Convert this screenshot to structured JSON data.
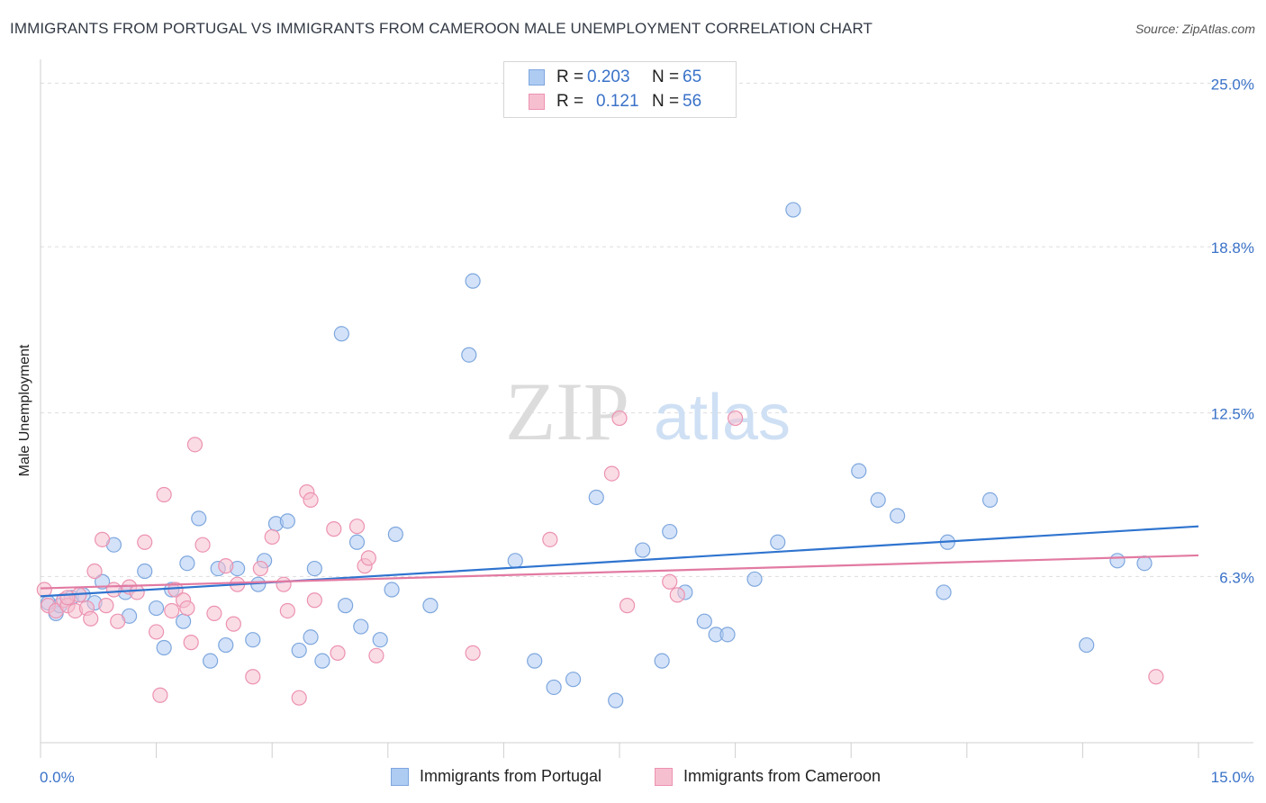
{
  "header": {
    "title": "IMMIGRANTS FROM PORTUGAL VS IMMIGRANTS FROM CAMEROON MALE UNEMPLOYMENT CORRELATION CHART",
    "source": "Source: ZipAtlas.com"
  },
  "watermark": {
    "zip": "ZIP",
    "atlas": "atlas"
  },
  "legend": {
    "r_label": "R =",
    "n_label": "N =",
    "portugal": {
      "r": "0.203",
      "n": "65"
    },
    "cameroon": {
      "r": "0.121",
      "n": "56"
    }
  },
  "bottom_legend": {
    "portugal": "Immigrants from Portugal",
    "cameroon": "Immigrants from Cameroon"
  },
  "colors": {
    "portugal_fill": "#aecbf2",
    "portugal_stroke": "#7ea7de",
    "portugal_line": "#2f74cf",
    "cameroon_fill": "#f6bfd0",
    "cameroon_stroke": "#ec92b0",
    "cameroon_line": "#e27aa2",
    "axis_label": "#3a72c8"
  },
  "chart_data": {
    "type": "scatter",
    "title": "IMMIGRANTS FROM PORTUGAL VS IMMIGRANTS FROM CAMEROON MALE UNEMPLOYMENT CORRELATION CHART",
    "xlabel": "",
    "ylabel": "Male Unemployment",
    "xlim": [
      0,
      15
    ],
    "ylim": [
      0,
      25.9
    ],
    "x_tick_labels": [
      "0.0%",
      "15.0%"
    ],
    "y_ticks": [
      6.3,
      12.5,
      18.8,
      25.0
    ],
    "y_tick_labels": [
      "6.3%",
      "12.5%",
      "18.8%",
      "25.0%"
    ],
    "grid": true,
    "legend_position": "top-center",
    "series": [
      {
        "name": "Immigrants from Portugal",
        "trend": {
          "x": [
            0,
            15
          ],
          "y": [
            5.55,
            8.2
          ]
        },
        "points": [
          [
            0.1,
            5.3
          ],
          [
            0.2,
            4.9
          ],
          [
            0.25,
            5.2
          ],
          [
            0.4,
            5.5
          ],
          [
            0.55,
            5.6
          ],
          [
            0.7,
            5.3
          ],
          [
            0.8,
            6.1
          ],
          [
            0.95,
            7.5
          ],
          [
            1.1,
            5.7
          ],
          [
            1.15,
            4.8
          ],
          [
            1.35,
            6.5
          ],
          [
            1.5,
            5.1
          ],
          [
            1.6,
            3.6
          ],
          [
            1.7,
            5.8
          ],
          [
            1.85,
            4.6
          ],
          [
            1.9,
            6.8
          ],
          [
            2.05,
            8.5
          ],
          [
            2.2,
            3.1
          ],
          [
            2.3,
            6.6
          ],
          [
            2.4,
            3.7
          ],
          [
            2.55,
            6.6
          ],
          [
            2.75,
            3.9
          ],
          [
            2.82,
            6.0
          ],
          [
            2.9,
            6.9
          ],
          [
            3.05,
            8.3
          ],
          [
            3.2,
            8.4
          ],
          [
            3.35,
            3.5
          ],
          [
            3.5,
            4.0
          ],
          [
            3.55,
            6.6
          ],
          [
            3.65,
            3.1
          ],
          [
            3.9,
            15.5
          ],
          [
            3.95,
            5.2
          ],
          [
            4.1,
            7.6
          ],
          [
            4.15,
            4.4
          ],
          [
            4.4,
            3.9
          ],
          [
            4.55,
            5.8
          ],
          [
            4.6,
            7.9
          ],
          [
            5.05,
            5.2
          ],
          [
            5.55,
            14.7
          ],
          [
            5.6,
            17.5
          ],
          [
            6.15,
            6.9
          ],
          [
            6.4,
            3.1
          ],
          [
            6.65,
            2.1
          ],
          [
            6.9,
            2.4
          ],
          [
            7.2,
            9.3
          ],
          [
            7.45,
            1.6
          ],
          [
            7.8,
            7.3
          ],
          [
            8.05,
            3.1
          ],
          [
            8.15,
            8.0
          ],
          [
            8.35,
            5.7
          ],
          [
            8.6,
            4.6
          ],
          [
            8.75,
            4.1
          ],
          [
            8.9,
            4.1
          ],
          [
            9.25,
            6.2
          ],
          [
            9.55,
            7.6
          ],
          [
            9.75,
            20.2
          ],
          [
            10.6,
            10.3
          ],
          [
            10.85,
            9.2
          ],
          [
            11.1,
            8.6
          ],
          [
            11.7,
            5.7
          ],
          [
            11.75,
            7.6
          ],
          [
            12.3,
            9.2
          ],
          [
            13.55,
            3.7
          ],
          [
            13.95,
            6.9
          ],
          [
            14.3,
            6.8
          ]
        ]
      },
      {
        "name": "Immigrants from Cameroon",
        "trend": {
          "x": [
            0,
            15
          ],
          "y": [
            5.85,
            7.1
          ]
        },
        "points": [
          [
            0.05,
            5.8
          ],
          [
            0.1,
            5.2
          ],
          [
            0.2,
            5.0
          ],
          [
            0.3,
            5.4
          ],
          [
            0.35,
            5.2
          ],
          [
            0.45,
            5.0
          ],
          [
            0.5,
            5.6
          ],
          [
            0.6,
            5.1
          ],
          [
            0.65,
            4.7
          ],
          [
            0.7,
            6.5
          ],
          [
            0.8,
            7.7
          ],
          [
            0.85,
            5.2
          ],
          [
            0.95,
            5.8
          ],
          [
            1.0,
            4.6
          ],
          [
            1.15,
            5.9
          ],
          [
            1.25,
            5.7
          ],
          [
            1.35,
            7.6
          ],
          [
            1.5,
            4.2
          ],
          [
            1.55,
            1.8
          ],
          [
            1.6,
            9.4
          ],
          [
            1.7,
            5.0
          ],
          [
            1.75,
            5.8
          ],
          [
            1.85,
            5.4
          ],
          [
            1.9,
            5.1
          ],
          [
            1.95,
            3.8
          ],
          [
            2.0,
            11.3
          ],
          [
            2.1,
            7.5
          ],
          [
            2.25,
            4.9
          ],
          [
            2.4,
            6.7
          ],
          [
            2.5,
            4.5
          ],
          [
            2.55,
            6.0
          ],
          [
            2.75,
            2.5
          ],
          [
            2.85,
            6.6
          ],
          [
            3.0,
            7.8
          ],
          [
            3.15,
            6.0
          ],
          [
            3.2,
            5.0
          ],
          [
            3.35,
            1.7
          ],
          [
            3.45,
            9.5
          ],
          [
            3.5,
            9.2
          ],
          [
            3.55,
            5.4
          ],
          [
            3.8,
            8.1
          ],
          [
            3.85,
            3.4
          ],
          [
            4.1,
            8.2
          ],
          [
            4.2,
            6.7
          ],
          [
            4.25,
            7.0
          ],
          [
            4.35,
            3.3
          ],
          [
            5.6,
            3.4
          ],
          [
            6.6,
            7.7
          ],
          [
            7.4,
            10.2
          ],
          [
            7.5,
            12.3
          ],
          [
            7.6,
            5.2
          ],
          [
            8.15,
            6.1
          ],
          [
            8.25,
            5.6
          ],
          [
            9.0,
            12.3
          ],
          [
            14.45,
            2.5
          ],
          [
            0.35,
            5.5
          ]
        ]
      }
    ]
  }
}
